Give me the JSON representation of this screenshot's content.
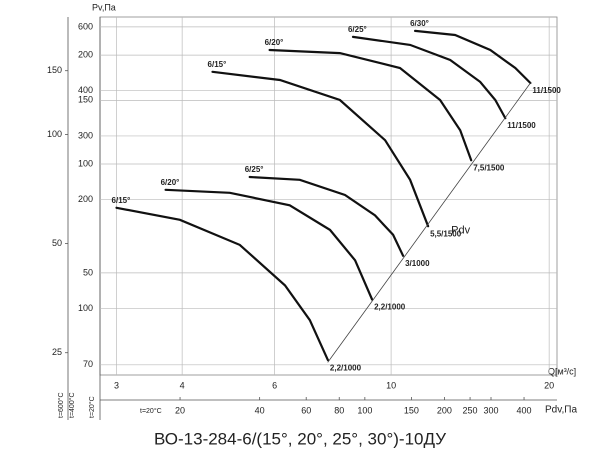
{
  "chart_data": {
    "type": "line",
    "title": "ВО-13-284-6/(15°, 20°, 25°, 30°)-10ДУ",
    "ylabel": "Pv,Па",
    "xlabel": "Q[м³/с]",
    "x2label": "Pdv,Па",
    "y_temp": "t=20°C",
    "y2_temp": "t=400°C",
    "y3_temp": "t=600°C",
    "x2_temp": "t=20°C",
    "log_scale": true,
    "grid": true,
    "xlim": [
      2.79,
      20.7
    ],
    "xticks": [
      3,
      4,
      6,
      10,
      20
    ],
    "ylim": [
      65.6,
      639
    ],
    "yticks": [
      70,
      100,
      200,
      300,
      400,
      600
    ],
    "y2lim": [
      26.1,
      255
    ],
    "y2ticks": [
      50,
      100,
      150,
      200
    ],
    "y3lim": [
      21.7,
      211
    ],
    "y3ticks": [
      25,
      50,
      100,
      150
    ],
    "x2lim": [
      9.96,
      533
    ],
    "x2ticks": [
      20,
      40,
      60,
      80,
      100,
      150,
      200,
      250,
      300,
      400
    ],
    "series": [
      {
        "name": "6/15°",
        "end_label": "5,5/1500",
        "color": "#111111",
        "x": [
          4.57,
          6.14,
          7.99,
          9.74,
          10.87,
          11.76
        ],
        "values": [
          451,
          428,
          377,
          292,
          227,
          169
        ]
      },
      {
        "name": "6/20°",
        "end_label": "7,5/1500",
        "color": "#111111",
        "x": [
          5.87,
          7.99,
          10.4,
          12.4,
          13.54,
          14.21
        ],
        "values": [
          518,
          508,
          462,
          377,
          311,
          257
        ]
      },
      {
        "name": "6/25°",
        "end_label": "11/1500",
        "color": "#111111",
        "x": [
          8.46,
          10.87,
          12.96,
          14.78,
          15.79,
          16.5
        ],
        "values": [
          563,
          535,
          486,
          423,
          377,
          336
        ]
      },
      {
        "name": "6/30°",
        "end_label": "11/1500",
        "color": "#111111",
        "x": [
          11.11,
          13.24,
          15.45,
          17.24,
          18.42
        ],
        "values": [
          585,
          570,
          518,
          462,
          420
        ]
      },
      {
        "name": "6/15°",
        "end_label": "2,2/1000",
        "color": "#111111",
        "x": [
          3.0,
          3.96,
          5.15,
          6.28,
          7.0,
          7.58
        ],
        "values": [
          190,
          176,
          150,
          116,
          93,
          72.1
        ]
      },
      {
        "name": "6/20°",
        "end_label": "2,2/1000",
        "color": "#111111",
        "x": [
          3.72,
          4.93,
          6.41,
          7.65,
          8.54,
          9.2
        ],
        "values": [
          213,
          209,
          193,
          165,
          136,
          106
        ]
      },
      {
        "name": "6/25°",
        "end_label": "3/1000",
        "color": "#111111",
        "x": [
          5.38,
          6.7,
          8.17,
          9.32,
          10.09,
          10.54
        ],
        "values": [
          231,
          227,
          206,
          181,
          160,
          140
        ]
      },
      {
        "name": "Pdv",
        "color": "#444444",
        "x": [
          7.58,
          18.42
        ],
        "values": [
          71.2,
          420
        ]
      }
    ]
  }
}
